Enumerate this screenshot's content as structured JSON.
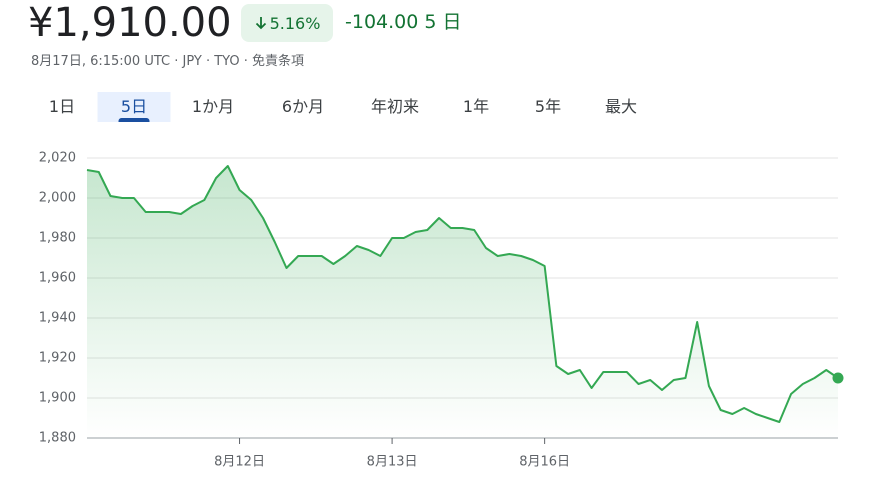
{
  "header": {
    "price": "¥1,910.00",
    "change_percent": "5.16%",
    "change": "-104.00",
    "period": "5 日",
    "subtitle": "8月17日, 6:15:00 UTC · JPY · TYO · 免責条項"
  },
  "tabs": {
    "items": [
      "1日",
      "5日",
      "1か月",
      "6か月",
      "年初来",
      "1年",
      "5年",
      "最大"
    ],
    "selected": 1
  },
  "chart_data": {
    "type": "line",
    "x": [
      0,
      1,
      2,
      3,
      4,
      5,
      6,
      7,
      8,
      9,
      10,
      11,
      12,
      13,
      14,
      15,
      16,
      17,
      18,
      19,
      20,
      21,
      22,
      23,
      24,
      25,
      26,
      27,
      28,
      29,
      30,
      31,
      32,
      33,
      34,
      35,
      36,
      37,
      38,
      39,
      40,
      41,
      42,
      43,
      44,
      45,
      46,
      47,
      48,
      49,
      50,
      51,
      52,
      53,
      54,
      55,
      56,
      57,
      58,
      59,
      60,
      61,
      62,
      63,
      64
    ],
    "series": [
      {
        "color": "#34a853",
        "values": [
          2014,
          2013,
          2001,
          2000,
          2000,
          1993,
          1993,
          1993,
          1992,
          1996,
          1999,
          2010,
          2016,
          2004,
          1999,
          1990,
          1978,
          1965,
          1971,
          1971,
          1971,
          1967,
          1971,
          1976,
          1974,
          1971,
          1980,
          1980,
          1983,
          1984,
          1990,
          1985,
          1985,
          1984,
          1975,
          1971,
          1972,
          1971,
          1969,
          1966,
          1916,
          1912,
          1914,
          1905,
          1913,
          1913,
          1913,
          1907,
          1909,
          1904,
          1909,
          1910,
          1938,
          1906,
          1894,
          1892,
          1895,
          1892,
          1890,
          1888,
          1902,
          1907,
          1910,
          1914,
          1910
        ]
      }
    ],
    "xlim": [
      0,
      64
    ],
    "xticks": [
      {
        "value": 13,
        "label": "8月12日"
      },
      {
        "value": 26,
        "label": "8月13日"
      },
      {
        "value": 39,
        "label": "8月16日"
      }
    ],
    "ylim": [
      1880,
      2020
    ],
    "yticks": [
      {
        "value": 1880,
        "label": "1,880"
      },
      {
        "value": 1900,
        "label": "1,900"
      },
      {
        "value": 1920,
        "label": "1,920"
      },
      {
        "value": 1940,
        "label": "1,940"
      },
      {
        "value": 1960,
        "label": "1,960"
      },
      {
        "value": 1980,
        "label": "1,980"
      },
      {
        "value": 2000,
        "label": "2,000"
      },
      {
        "value": 2020,
        "label": "2,020"
      }
    ],
    "grid": true
  }
}
